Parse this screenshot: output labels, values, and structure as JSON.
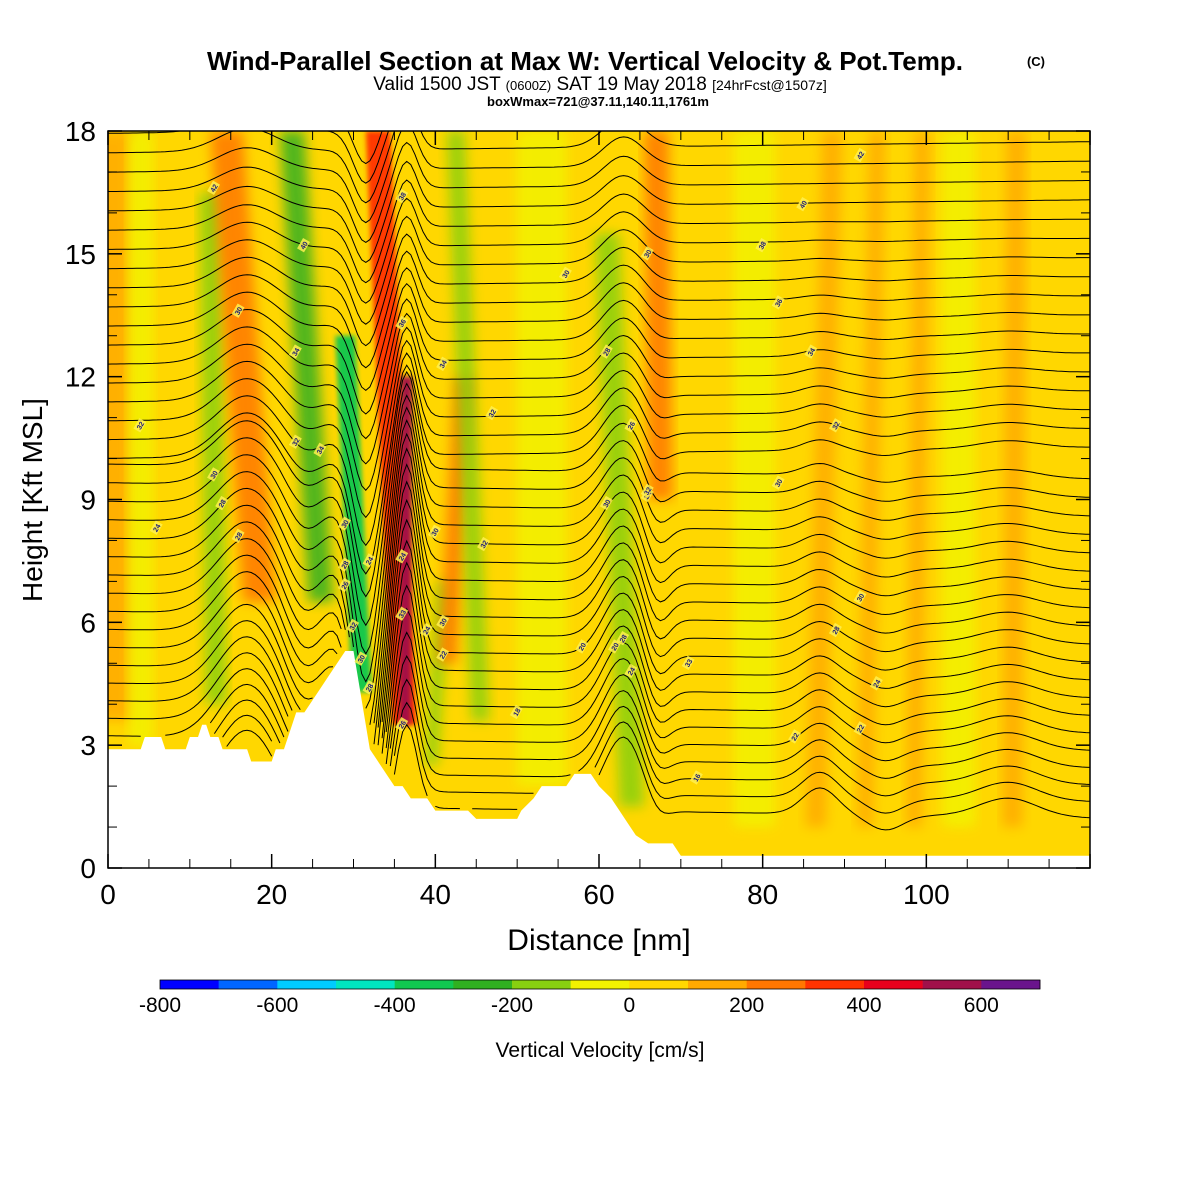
{
  "title": {
    "main": "Wind-Parallel Section at Max W: Vertical Velocity & Pot.Temp.",
    "copyright": "(C)",
    "line2_a": "Valid 1500 JST",
    "line2_b": "(0600Z)",
    "line2_c": "SAT 19 May 2018",
    "line2_d": "[24hrFcst@1507z]",
    "line3": "boxWmax=721@37.11,140.11,1761m"
  },
  "chart_data": {
    "type": "heatmap",
    "title": "Wind-Parallel Section at Max W: Vertical Velocity & Pot.Temp.",
    "xlabel": "Distance [nm]",
    "ylabel": "Height [Kft MSL]",
    "xlim": [
      0,
      120
    ],
    "ylim": [
      0,
      18
    ],
    "x_ticks": [
      "0",
      "20",
      "40",
      "60",
      "80",
      "100"
    ],
    "x_tick_values": [
      0,
      20,
      40,
      60,
      80,
      100
    ],
    "y_ticks": [
      "0",
      "3",
      "6",
      "9",
      "12",
      "15",
      "18"
    ],
    "y_tick_values": [
      0,
      3,
      6,
      9,
      12,
      15,
      18
    ],
    "colorbar": {
      "label": "Vertical Velocity [cm/s]",
      "labels": [
        "-800",
        "-600",
        "-400",
        "-200",
        "0",
        "200",
        "400",
        "600"
      ],
      "label_values": [
        -800,
        -600,
        -400,
        -200,
        0,
        200,
        400,
        600
      ],
      "min": -800,
      "max": 700,
      "step": 100,
      "colors": [
        "#0000ff",
        "#0066ff",
        "#00ccff",
        "#00e6c0",
        "#10c850",
        "#30b020",
        "#88d010",
        "#f2f200",
        "#ffd700",
        "#ffaa00",
        "#ff7700",
        "#ff3300",
        "#e8001c",
        "#a0104a",
        "#6a148c"
      ]
    },
    "background_color": "#ffd700",
    "w_bands": [
      {
        "name": "updraft",
        "level": 100,
        "base_x": 0.5,
        "base_y": 3.6,
        "top_x": 0.3,
        "top_y": 18,
        "width": 5
      },
      {
        "name": "downdraft",
        "level": -150,
        "base_x": 13.2,
        "base_y": 4.0,
        "top_x": 12.5,
        "top_y": 16.5,
        "width": 2.6
      },
      {
        "name": "updraft",
        "level": 200,
        "base_x": 18.5,
        "base_y": 6.5,
        "top_x": 14.5,
        "top_y": 18,
        "width": 4
      },
      {
        "name": "downdraft",
        "level": -250,
        "base_x": 26.0,
        "base_y": 6.5,
        "top_x": 22.5,
        "top_y": 18,
        "width": 3
      },
      {
        "name": "downdraft",
        "level": -350,
        "base_x": 31.0,
        "base_y": 4.3,
        "top_x": 29.0,
        "top_y": 13,
        "width": 2.4
      },
      {
        "name": "updraft",
        "level": 300,
        "base_x": 36.2,
        "base_y": 3.5,
        "top_x": 33.0,
        "top_y": 18,
        "width": 3
      },
      {
        "name": "updraft",
        "level": 500,
        "base_x": 36.3,
        "base_y": 3.5,
        "top_x": 36.5,
        "top_y": 12,
        "width": 1.4
      },
      {
        "name": "downdraft",
        "level": -180,
        "base_x": 39.5,
        "base_y": 2.5,
        "top_x": 41.0,
        "top_y": 7,
        "width": 1.6
      },
      {
        "name": "updraft",
        "level": 200,
        "base_x": 41.5,
        "base_y": 5.0,
        "top_x": 43.5,
        "top_y": 12,
        "width": 2.2
      },
      {
        "name": "downdraft",
        "level": -150,
        "base_x": 45.5,
        "base_y": 3.6,
        "top_x": 42.5,
        "top_y": 18,
        "width": 2.2
      },
      {
        "name": "downdraft",
        "level": -200,
        "base_x": 64.0,
        "base_y": 1.5,
        "top_x": 61.0,
        "top_y": 15.5,
        "width": 3
      },
      {
        "name": "updraft",
        "level": 200,
        "base_x": 67.5,
        "base_y": 9.0,
        "top_x": 67.0,
        "top_y": 18,
        "width": 3
      },
      {
        "name": "updraft",
        "level": 100,
        "base_x": 86.5,
        "base_y": 1.0,
        "top_x": 88.5,
        "top_y": 18,
        "width": 2.5
      },
      {
        "name": "updraft",
        "level": 100,
        "base_x": 92.5,
        "base_y": 1.0,
        "top_x": 94.0,
        "top_y": 18,
        "width": 2
      },
      {
        "name": "updraft",
        "level": 100,
        "base_x": 98.5,
        "base_y": 1.0,
        "top_x": 99.5,
        "top_y": 18,
        "width": 2
      },
      {
        "name": "updraft",
        "level": 100,
        "base_x": 110.5,
        "base_y": 1.0,
        "top_x": 111.0,
        "top_y": 18,
        "width": 2.5
      },
      {
        "name": "weak",
        "level": 0,
        "base_x": 4.0,
        "base_y": 3.0,
        "top_x": 4.0,
        "top_y": 18,
        "width": 3
      },
      {
        "name": "weak",
        "level": 0,
        "base_x": 53.0,
        "base_y": 2.0,
        "top_x": 53.0,
        "top_y": 18,
        "width": 6
      },
      {
        "name": "weak",
        "level": 0,
        "base_x": 79.0,
        "base_y": 1.0,
        "top_x": 79.0,
        "top_y": 18,
        "width": 5
      },
      {
        "name": "weak",
        "level": 0,
        "base_x": 104.0,
        "base_y": 1.0,
        "top_x": 104.0,
        "top_y": 18,
        "width": 4
      }
    ],
    "terrain": [
      [
        0,
        2.9
      ],
      [
        4,
        2.9
      ],
      [
        4.5,
        3.2
      ],
      [
        6.5,
        3.2
      ],
      [
        7,
        2.9
      ],
      [
        9.5,
        2.9
      ],
      [
        10,
        3.2
      ],
      [
        11,
        3.2
      ],
      [
        11.5,
        3.5
      ],
      [
        12,
        3.5
      ],
      [
        12.5,
        3.2
      ],
      [
        13.5,
        3.2
      ],
      [
        14,
        2.9
      ],
      [
        17,
        2.9
      ],
      [
        17.5,
        2.6
      ],
      [
        20,
        2.6
      ],
      [
        20.5,
        2.9
      ],
      [
        21.5,
        2.9
      ],
      [
        22,
        3.2
      ],
      [
        22.5,
        3.5
      ],
      [
        23,
        3.8
      ],
      [
        24,
        3.8
      ],
      [
        25,
        4.1
      ],
      [
        26,
        4.4
      ],
      [
        27,
        4.7
      ],
      [
        28,
        5.0
      ],
      [
        29,
        5.3
      ],
      [
        30,
        5.3
      ],
      [
        30.5,
        4.7
      ],
      [
        31.5,
        3.5
      ],
      [
        32,
        2.9
      ],
      [
        33,
        2.6
      ],
      [
        34,
        2.3
      ],
      [
        35,
        2.0
      ],
      [
        36,
        2.0
      ],
      [
        37,
        1.7
      ],
      [
        39,
        1.7
      ],
      [
        40,
        1.4
      ],
      [
        44,
        1.4
      ],
      [
        45,
        1.2
      ],
      [
        50,
        1.2
      ],
      [
        50.5,
        1.4
      ],
      [
        52,
        1.7
      ],
      [
        53,
        2.0
      ],
      [
        56,
        2.0
      ],
      [
        57,
        2.3
      ],
      [
        59,
        2.3
      ],
      [
        60,
        2.0
      ],
      [
        61.5,
        1.7
      ],
      [
        62.5,
        1.4
      ],
      [
        63.5,
        1.1
      ],
      [
        64.5,
        0.8
      ],
      [
        66,
        0.6
      ],
      [
        69,
        0.6
      ],
      [
        70,
        0.3
      ],
      [
        120,
        0.3
      ]
    ],
    "theta_contours": {
      "interval_K": 1,
      "min_K": 303,
      "max_K": 343,
      "labels": [
        "30",
        "32",
        "34",
        "36",
        "38",
        "40",
        "42",
        "33",
        "35",
        "37",
        "39",
        "41",
        "26",
        "24",
        "28",
        "18",
        "22",
        "16"
      ]
    },
    "contour_labels": [
      {
        "text": "42",
        "x": 13,
        "y": 16.6
      },
      {
        "text": "40",
        "x": 24,
        "y": 15.2
      },
      {
        "text": "38",
        "x": 36,
        "y": 16.4
      },
      {
        "text": "36",
        "x": 36,
        "y": 13.3
      },
      {
        "text": "34",
        "x": 41,
        "y": 12.3
      },
      {
        "text": "32",
        "x": 47,
        "y": 11.1
      },
      {
        "text": "30",
        "x": 56,
        "y": 14.5
      },
      {
        "text": "30",
        "x": 66,
        "y": 15.0
      },
      {
        "text": "28",
        "x": 61,
        "y": 12.6
      },
      {
        "text": "26",
        "x": 64,
        "y": 10.8
      },
      {
        "text": "24",
        "x": 66,
        "y": 9.1
      },
      {
        "text": "40",
        "x": 85,
        "y": 16.2
      },
      {
        "text": "38",
        "x": 80,
        "y": 15.2
      },
      {
        "text": "36",
        "x": 82,
        "y": 13.8
      },
      {
        "text": "34",
        "x": 86,
        "y": 12.6
      },
      {
        "text": "32",
        "x": 89,
        "y": 10.8
      },
      {
        "text": "30",
        "x": 82,
        "y": 9.4
      },
      {
        "text": "42",
        "x": 92,
        "y": 17.4
      },
      {
        "text": "30",
        "x": 16,
        "y": 13.6
      },
      {
        "text": "34",
        "x": 23,
        "y": 12.6
      },
      {
        "text": "32",
        "x": 23,
        "y": 10.4
      },
      {
        "text": "34",
        "x": 26,
        "y": 10.2
      },
      {
        "text": "32",
        "x": 4,
        "y": 10.8
      },
      {
        "text": "30",
        "x": 13,
        "y": 9.6
      },
      {
        "text": "28",
        "x": 14,
        "y": 8.9
      },
      {
        "text": "28",
        "x": 16,
        "y": 8.1
      },
      {
        "text": "24",
        "x": 6,
        "y": 8.3
      },
      {
        "text": "30",
        "x": 29,
        "y": 8.4
      },
      {
        "text": "28",
        "x": 29,
        "y": 7.4
      },
      {
        "text": "26",
        "x": 29,
        "y": 6.9
      },
      {
        "text": "24",
        "x": 32,
        "y": 7.5
      },
      {
        "text": "24",
        "x": 36,
        "y": 7.6
      },
      {
        "text": "33",
        "x": 36,
        "y": 6.2
      },
      {
        "text": "32",
        "x": 30,
        "y": 5.9
      },
      {
        "text": "30",
        "x": 31,
        "y": 5.1
      },
      {
        "text": "28",
        "x": 32,
        "y": 4.4
      },
      {
        "text": "26",
        "x": 36,
        "y": 3.5
      },
      {
        "text": "30",
        "x": 40,
        "y": 8.2
      },
      {
        "text": "32",
        "x": 46,
        "y": 7.9
      },
      {
        "text": "30",
        "x": 41,
        "y": 6.0
      },
      {
        "text": "24",
        "x": 39,
        "y": 5.8
      },
      {
        "text": "22",
        "x": 41,
        "y": 5.2
      },
      {
        "text": "20",
        "x": 58,
        "y": 5.4
      },
      {
        "text": "20",
        "x": 62,
        "y": 5.4
      },
      {
        "text": "28",
        "x": 63,
        "y": 5.6
      },
      {
        "text": "24",
        "x": 64,
        "y": 4.8
      },
      {
        "text": "18",
        "x": 50,
        "y": 3.8
      },
      {
        "text": "30",
        "x": 61,
        "y": 8.9
      },
      {
        "text": "32",
        "x": 66,
        "y": 9.2
      },
      {
        "text": "33",
        "x": 71,
        "y": 5.0
      },
      {
        "text": "16",
        "x": 72,
        "y": 2.2
      },
      {
        "text": "30",
        "x": 92,
        "y": 6.6
      },
      {
        "text": "28",
        "x": 89,
        "y": 5.8
      },
      {
        "text": "24",
        "x": 94,
        "y": 4.5
      },
      {
        "text": "22",
        "x": 84,
        "y": 3.2
      },
      {
        "text": "22",
        "x": 92,
        "y": 3.4
      }
    ]
  }
}
